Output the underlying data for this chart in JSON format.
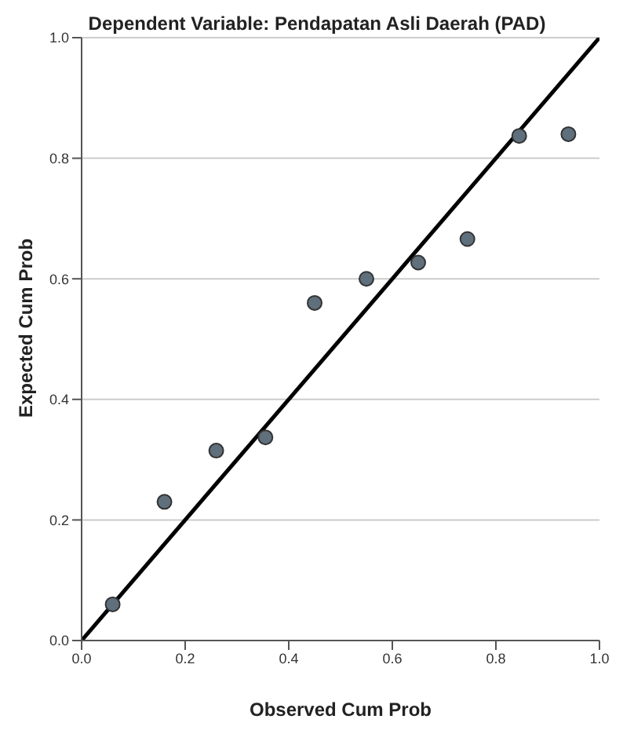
{
  "chart_data": {
    "type": "scatter",
    "title": "Dependent Variable: Pendapatan Asli Daerah (PAD)",
    "xlabel": "Observed Cum Prob",
    "ylabel": "Expected Cum Prob",
    "xlim": [
      0,
      1
    ],
    "ylim": [
      0,
      1
    ],
    "xticks": [
      {
        "value": 0,
        "label": "0.0"
      },
      {
        "value": 0.2,
        "label": "0.2"
      },
      {
        "value": 0.4,
        "label": "0.4"
      },
      {
        "value": 0.6,
        "label": "0.6"
      },
      {
        "value": 0.8,
        "label": "0.8"
      },
      {
        "value": 1,
        "label": "1.0"
      }
    ],
    "yticks": [
      {
        "value": 0,
        "label": "0.0"
      },
      {
        "value": 0.2,
        "label": "0.2"
      },
      {
        "value": 0.4,
        "label": "0.4"
      },
      {
        "value": 0.6,
        "label": "0.6"
      },
      {
        "value": 0.8,
        "label": "0.8"
      },
      {
        "value": 1,
        "label": "1.0"
      }
    ],
    "grid": "y",
    "marker": "circle",
    "series": [
      {
        "color": "#5f6f7c",
        "x": [
          0.06,
          0.16,
          0.26,
          0.355,
          0.45,
          0.55,
          0.65,
          0.745,
          0.845,
          0.94
        ],
        "values": [
          0.06,
          0.23,
          0.315,
          0.337,
          0.56,
          0.6,
          0.627,
          0.666,
          0.837,
          0.84
        ]
      },
      {
        "type": "line",
        "color": "#000000",
        "line_style": "solid",
        "marker": "none",
        "x": [
          0,
          1
        ],
        "values": [
          0,
          1
        ]
      }
    ]
  }
}
